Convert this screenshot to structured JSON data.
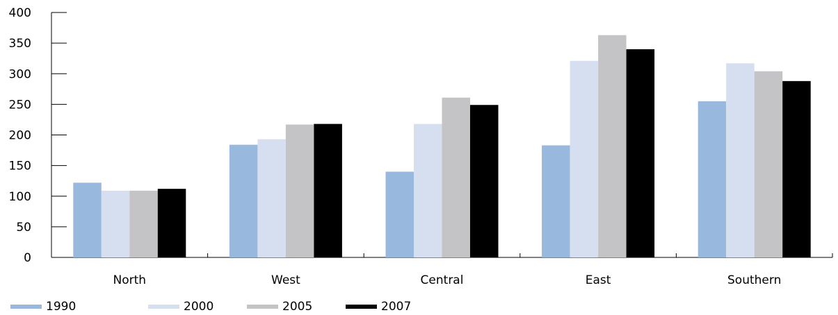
{
  "chart_data": {
    "type": "bar",
    "categories": [
      "North",
      "West",
      "Central",
      "East",
      "Southern"
    ],
    "series": [
      {
        "name": "1990",
        "color": "#98b8dd",
        "values": [
          122,
          184,
          140,
          183,
          255
        ]
      },
      {
        "name": "2000",
        "color": "#d5dff0",
        "values": [
          109,
          193,
          218,
          321,
          317
        ]
      },
      {
        "name": "2005",
        "color": "#c4c4c6",
        "values": [
          109,
          217,
          261,
          363,
          304
        ]
      },
      {
        "name": "2007",
        "color": "#000000",
        "values": [
          112,
          218,
          249,
          340,
          288
        ]
      }
    ],
    "yticks": [
      "0",
      "50",
      "100",
      "150",
      "200",
      "250",
      "300",
      "350",
      "400"
    ],
    "ylim": [
      0,
      400
    ],
    "grid": false,
    "legend_position": "bottom-left"
  }
}
